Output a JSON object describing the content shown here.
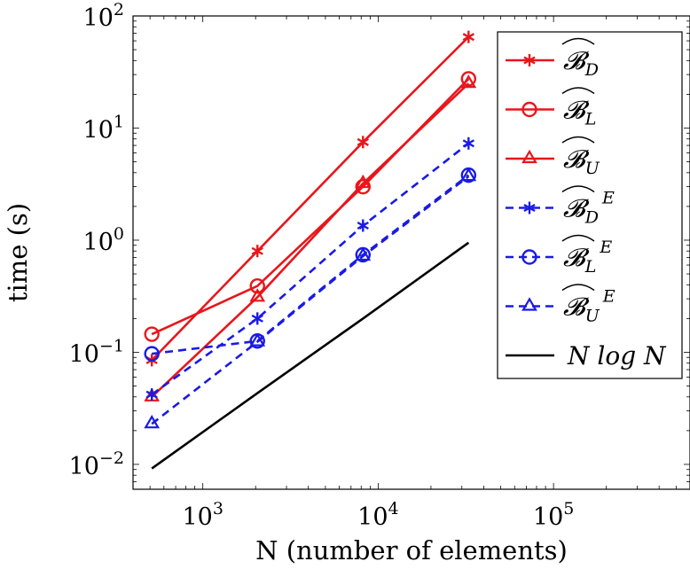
{
  "chart_data": {
    "type": "line",
    "xlabel": "N (number of elements)",
    "ylabel": "time (s)",
    "x_scale": "log",
    "y_scale": "log",
    "xlim": [
      400,
      600000
    ],
    "ylim": [
      0.006,
      100
    ],
    "x_ticks": [
      {
        "value": 1000,
        "base": "10",
        "exp": "3"
      },
      {
        "value": 10000,
        "base": "10",
        "exp": "4"
      },
      {
        "value": 100000,
        "base": "10",
        "exp": "5"
      }
    ],
    "y_ticks": [
      {
        "value": 0.01,
        "base": "10",
        "exp": "−2"
      },
      {
        "value": 0.1,
        "base": "10",
        "exp": "−1"
      },
      {
        "value": 1,
        "base": "10",
        "exp": "0"
      },
      {
        "value": 10,
        "base": "10",
        "exp": "1"
      },
      {
        "value": 100,
        "base": "10",
        "exp": "2"
      }
    ],
    "x": [
      512,
      2048,
      8192,
      32768
    ],
    "legend_position": "top-right",
    "series": [
      {
        "name": "B_D",
        "label_main": "𝓑",
        "label_sub": "D",
        "label_sup": "",
        "color": "#e8161b",
        "dash": "solid",
        "marker": "asterisk",
        "values": [
          0.085,
          0.8,
          7.5,
          65
        ]
      },
      {
        "name": "B_L",
        "label_main": "𝓑",
        "label_sub": "L",
        "label_sup": "",
        "color": "#e8161b",
        "dash": "solid",
        "marker": "circle",
        "values": [
          0.145,
          0.39,
          3.0,
          27.5
        ]
      },
      {
        "name": "B_U",
        "label_main": "𝓑",
        "label_sub": "U",
        "label_sup": "",
        "color": "#e8161b",
        "dash": "solid",
        "marker": "triangle",
        "values": [
          0.04,
          0.31,
          3.2,
          25
        ]
      },
      {
        "name": "B_D^E",
        "label_main": "𝓑",
        "label_sub": "D",
        "label_sup": "E",
        "color": "#1a1ae6",
        "dash": "dashed",
        "marker": "asterisk",
        "values": [
          0.042,
          0.2,
          1.35,
          7.3
        ]
      },
      {
        "name": "B_L^E",
        "label_main": "𝓑",
        "label_sub": "L",
        "label_sup": "E",
        "color": "#1a1ae6",
        "dash": "dashed",
        "marker": "circle",
        "values": [
          0.097,
          0.126,
          0.74,
          3.8
        ]
      },
      {
        "name": "B_U^E",
        "label_main": "𝓑",
        "label_sub": "U",
        "label_sup": "E",
        "color": "#1a1ae6",
        "dash": "dashed",
        "marker": "triangle",
        "values": [
          0.023,
          0.124,
          0.72,
          3.7
        ]
      },
      {
        "name": "N log N",
        "label_main": "N log N",
        "label_sub": "",
        "label_sup": "",
        "color": "#000000",
        "dash": "solid",
        "marker": "none",
        "values": [
          0.0092,
          0.0432,
          0.2,
          0.95
        ]
      }
    ]
  }
}
